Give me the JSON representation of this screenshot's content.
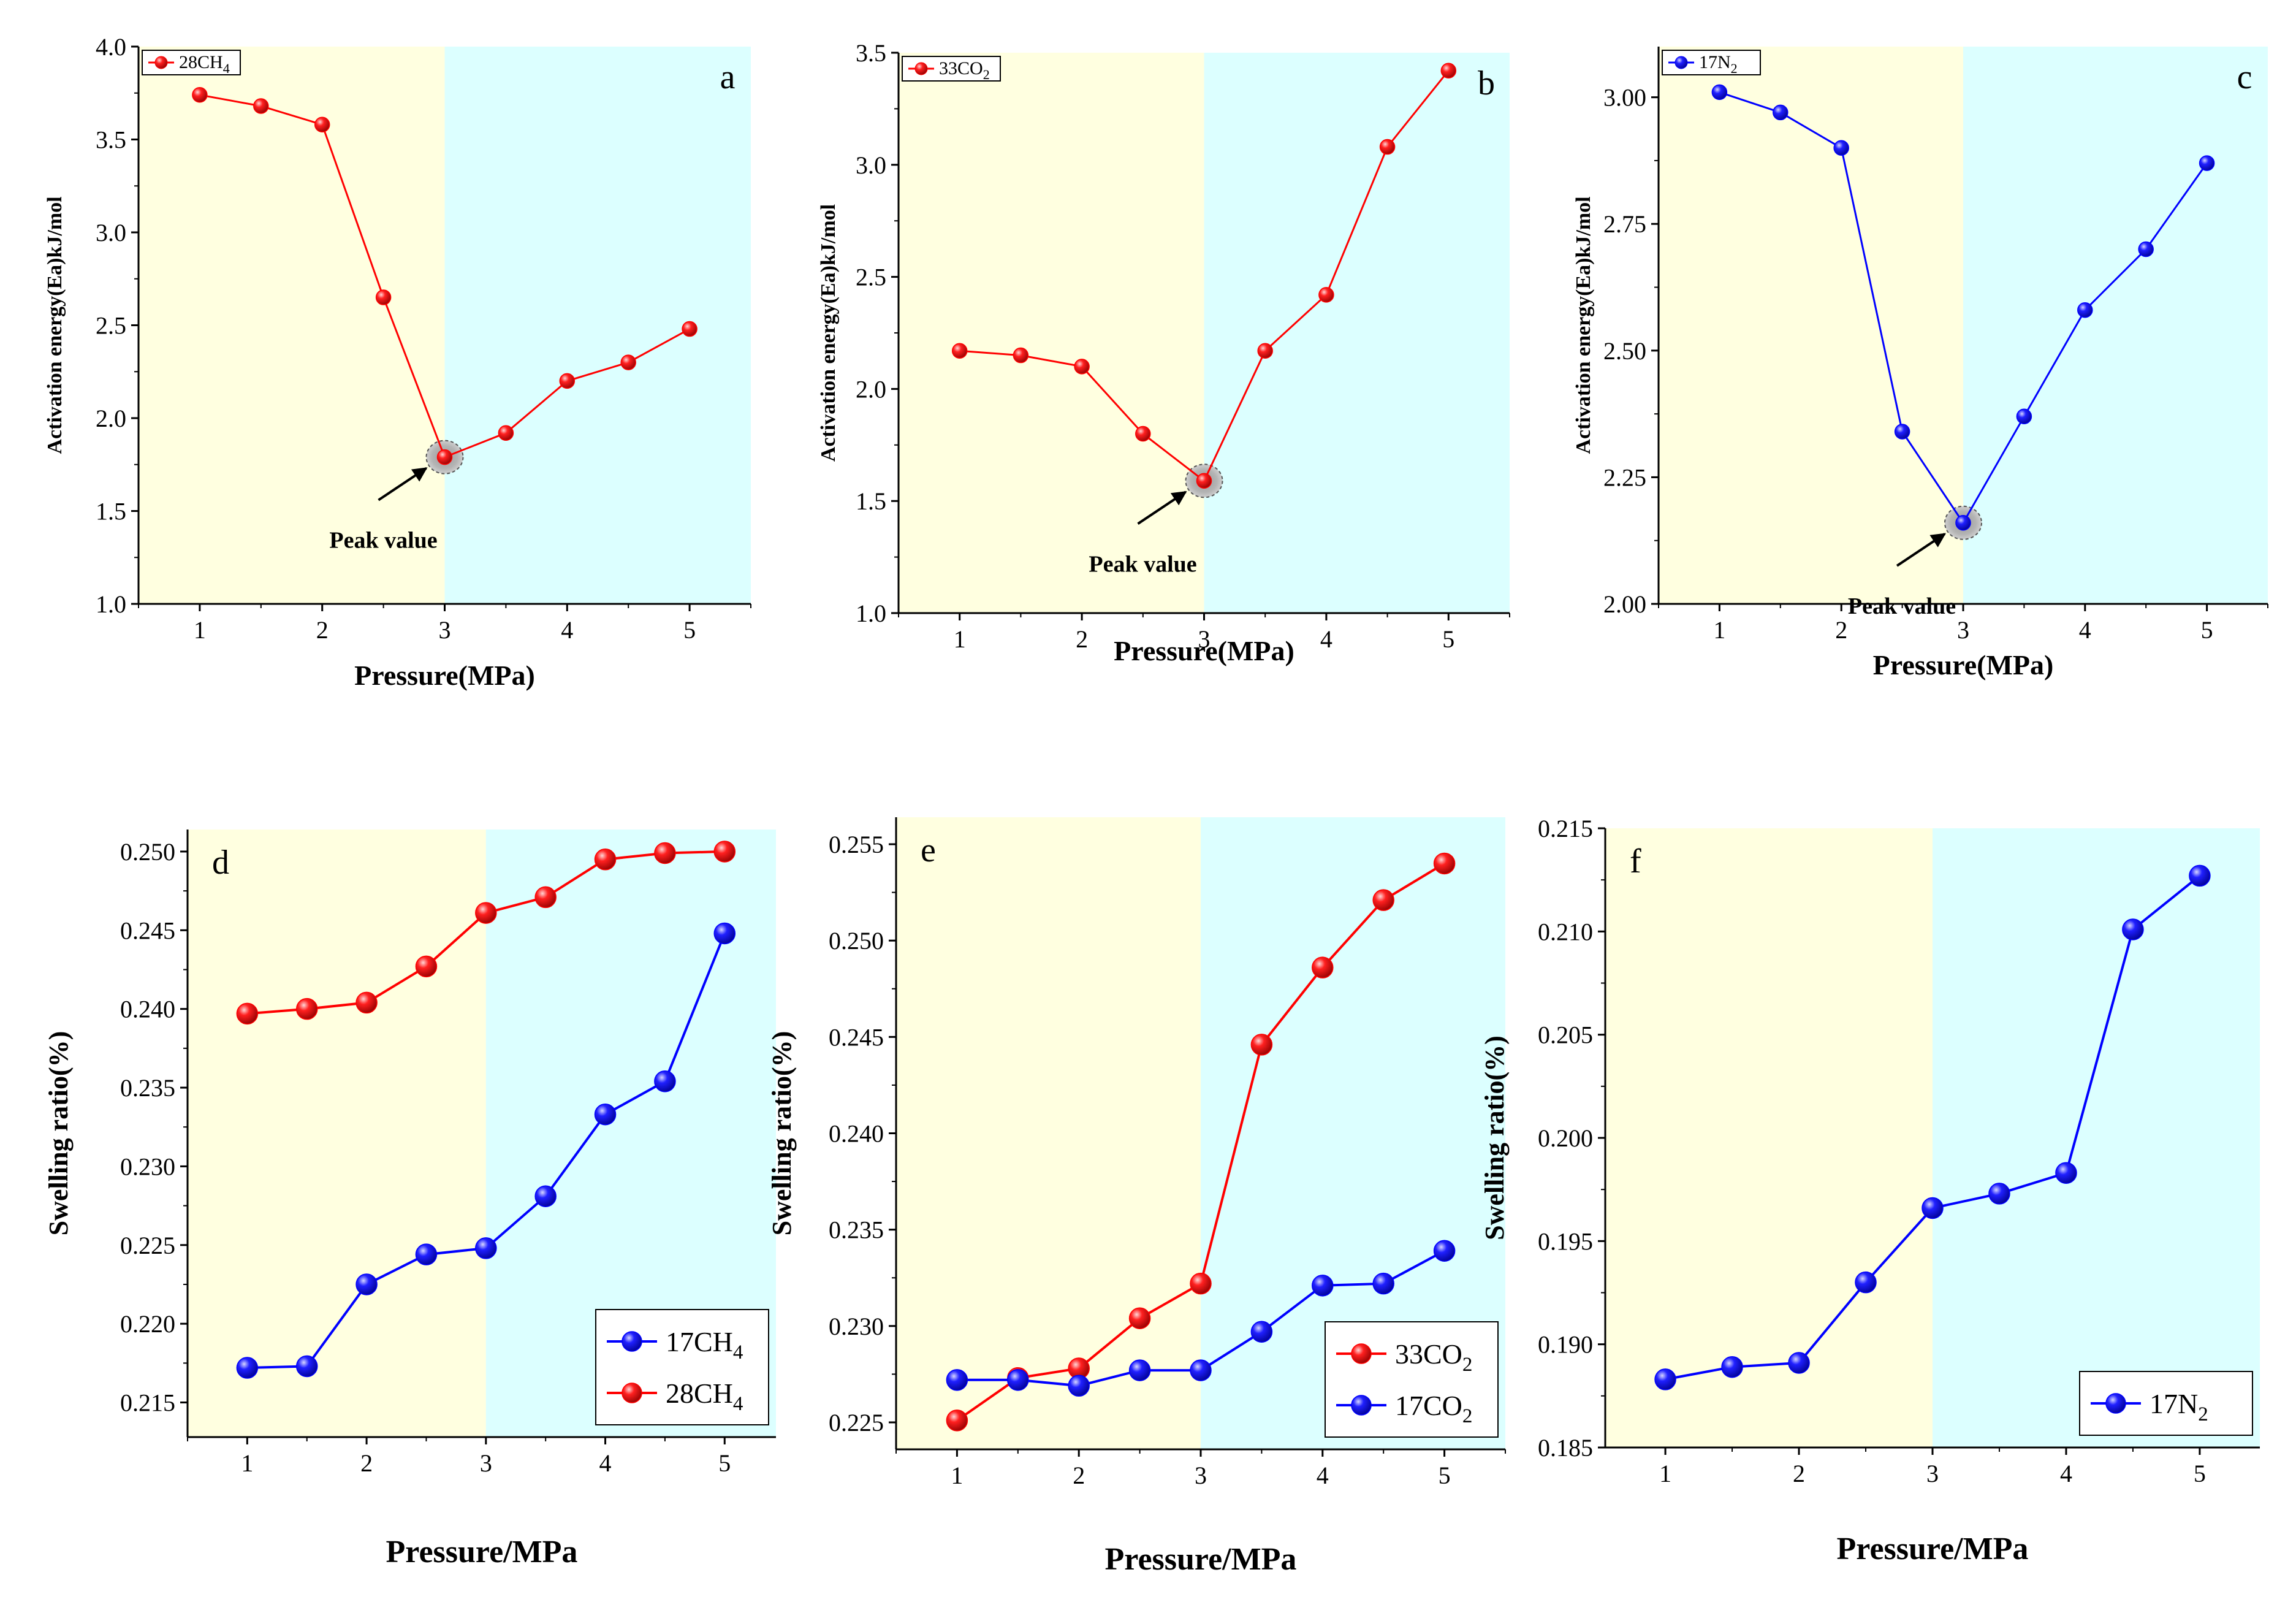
{
  "colors": {
    "red_series": "#ff0000",
    "blue_series": "#0000ff",
    "low_pressure_region": "#ffffe0",
    "high_pressure_region": "#dcffff",
    "axis": "#000000"
  },
  "chart_data": [
    {
      "id": "a",
      "type": "line",
      "panel_label": "a",
      "xlabel": "Pressure(MPa)",
      "ylabel": "Activation energy(Ea)kJ/mol",
      "xlim": [
        0.5,
        5.5
      ],
      "ylim": [
        1.0,
        4.0
      ],
      "x_ticks": [
        1,
        2,
        3,
        4,
        5
      ],
      "x_tick_labels": [
        "1",
        "2",
        "3",
        "4",
        "5"
      ],
      "y_ticks": [
        1.0,
        1.5,
        2.0,
        2.5,
        3.0,
        3.5,
        4.0
      ],
      "y_tick_labels": [
        "1.0",
        "1.5",
        "2.0",
        "2.5",
        "3.0",
        "3.5",
        "4.0"
      ],
      "region_split_x": 3,
      "legend_position": "top-left",
      "series": [
        {
          "name": "28CH4",
          "label_base": "28CH",
          "label_sub": "4",
          "color": "#ff0000",
          "x": [
            1,
            1.5,
            2,
            2.5,
            3,
            3.5,
            4,
            4.5,
            5
          ],
          "values": [
            3.74,
            3.68,
            3.58,
            2.65,
            1.79,
            1.92,
            2.2,
            2.3,
            2.48
          ]
        }
      ],
      "annotation": {
        "text": "Peak value",
        "x": 3,
        "y": 1.79
      }
    },
    {
      "id": "b",
      "type": "line",
      "panel_label": "b",
      "xlabel": "Pressure(MPa)",
      "ylabel": "Activation energy(Ea)kJ/mol",
      "xlim": [
        0.5,
        5.5
      ],
      "ylim": [
        1.0,
        3.5
      ],
      "x_ticks": [
        1,
        2,
        3,
        4,
        5
      ],
      "x_tick_labels": [
        "1",
        "2",
        "3",
        "4",
        "5"
      ],
      "y_ticks": [
        1.0,
        1.5,
        2.0,
        2.5,
        3.0,
        3.5
      ],
      "y_tick_labels": [
        "1.0",
        "1.5",
        "2.0",
        "2.5",
        "3.0",
        "3.5"
      ],
      "region_split_x": 3,
      "legend_position": "top-left",
      "series": [
        {
          "name": "33CO2",
          "label_base": "33CO",
          "label_sub": "2",
          "color": "#ff0000",
          "x": [
            1,
            1.5,
            2,
            2.5,
            3,
            3.5,
            4,
            4.5,
            5
          ],
          "values": [
            2.17,
            2.15,
            2.1,
            1.8,
            1.59,
            2.17,
            2.42,
            3.08,
            3.42
          ]
        }
      ],
      "annotation": {
        "text": "Peak value",
        "x": 3,
        "y": 1.59
      }
    },
    {
      "id": "c",
      "type": "line",
      "panel_label": "c",
      "xlabel": "Pressure(MPa)",
      "ylabel": "Activation energy(Ea)kJ/mol",
      "xlim": [
        0.5,
        5.5
      ],
      "ylim": [
        2.0,
        3.1
      ],
      "x_ticks": [
        1,
        2,
        3,
        4,
        5
      ],
      "x_tick_labels": [
        "1",
        "2",
        "3",
        "4",
        "5"
      ],
      "y_ticks": [
        2.0,
        2.25,
        2.5,
        2.75,
        3.0
      ],
      "y_tick_labels": [
        "2.00",
        "2.25",
        "2.50",
        "2.75",
        "3.00"
      ],
      "region_split_x": 3,
      "legend_position": "top-left",
      "series": [
        {
          "name": "17N2",
          "label_base": "17N",
          "label_sub": "2",
          "color": "#0000ff",
          "x": [
            1,
            1.5,
            2,
            2.5,
            3,
            3.5,
            4,
            4.5,
            5
          ],
          "values": [
            3.01,
            2.97,
            2.9,
            2.34,
            2.16,
            2.37,
            2.58,
            2.7,
            2.87
          ]
        }
      ],
      "annotation": {
        "text": "Peak value",
        "x": 3,
        "y": 2.16
      }
    },
    {
      "id": "d",
      "type": "line",
      "panel_label": "d",
      "xlabel": "Pressure/MPa",
      "ylabel": "Swelling ratio(%)",
      "xlim": [
        0.5,
        5.43
      ],
      "ylim": [
        0.2128,
        0.2514
      ],
      "x_ticks": [
        1,
        2,
        3,
        4,
        5
      ],
      "x_tick_labels": [
        "1",
        "2",
        "3",
        "4",
        "5"
      ],
      "y_ticks": [
        0.215,
        0.22,
        0.225,
        0.23,
        0.235,
        0.24,
        0.245,
        0.25
      ],
      "y_tick_labels": [
        "0.215",
        "0.220",
        "0.225",
        "0.230",
        "0.235",
        "0.240",
        "0.245",
        "0.250"
      ],
      "region_split_x": 3,
      "legend_position": "bottom-right",
      "series": [
        {
          "name": "17CH4",
          "label_base": "17CH",
          "label_sub": "4",
          "color": "#0000ff",
          "x": [
            1,
            1.5,
            2,
            2.5,
            3,
            3.5,
            4,
            4.5,
            5
          ],
          "values": [
            0.2172,
            0.2173,
            0.2225,
            0.2244,
            0.2248,
            0.2281,
            0.2333,
            0.2354,
            0.2448
          ]
        },
        {
          "name": "28CH4",
          "label_base": "28CH",
          "label_sub": "4",
          "color": "#ff0000",
          "x": [
            1,
            1.5,
            2,
            2.5,
            3,
            3.5,
            4,
            4.5,
            5
          ],
          "values": [
            0.2397,
            0.24,
            0.2404,
            0.2427,
            0.2461,
            0.2471,
            0.2495,
            0.2499,
            0.25
          ]
        }
      ]
    },
    {
      "id": "e",
      "type": "line",
      "panel_label": "e",
      "xlabel": "Pressure/MPa",
      "ylabel": "Swelling ratio(%)",
      "xlim": [
        0.5,
        5.5
      ],
      "ylim": [
        0.2236,
        0.2564
      ],
      "x_ticks": [
        1,
        2,
        3,
        4,
        5
      ],
      "x_tick_labels": [
        "1",
        "2",
        "3",
        "4",
        "5"
      ],
      "y_ticks": [
        0.225,
        0.23,
        0.235,
        0.24,
        0.245,
        0.25,
        0.255
      ],
      "y_tick_labels": [
        "0.225",
        "0.230",
        "0.235",
        "0.240",
        "0.245",
        "0.250",
        "0.255"
      ],
      "region_split_x": 3,
      "legend_position": "bottom-right",
      "series": [
        {
          "name": "33CO2",
          "label_base": "33CO",
          "label_sub": "2",
          "color": "#ff0000",
          "x": [
            1,
            1.5,
            2,
            2.5,
            3,
            3.5,
            4,
            4.5,
            5
          ],
          "values": [
            0.2251,
            0.2273,
            0.2278,
            0.2304,
            0.2322,
            0.2446,
            0.2486,
            0.2521,
            0.254
          ]
        },
        {
          "name": "17CO2",
          "label_base": "17CO",
          "label_sub": "2",
          "color": "#0000ff",
          "x": [
            1,
            1.5,
            2,
            2.5,
            3,
            3.5,
            4,
            4.5,
            5
          ],
          "values": [
            0.2272,
            0.2272,
            0.2269,
            0.2277,
            0.2277,
            0.2297,
            0.2321,
            0.2322,
            0.2339
          ]
        }
      ]
    },
    {
      "id": "f",
      "type": "line",
      "panel_label": "f",
      "xlabel": "Pressure/MPa",
      "ylabel": "Swelling ratio(%)",
      "xlim": [
        0.55,
        5.45
      ],
      "ylim": [
        0.185,
        0.215
      ],
      "x_ticks": [
        1,
        2,
        3,
        4,
        5
      ],
      "x_tick_labels": [
        "1",
        "2",
        "3",
        "4",
        "5"
      ],
      "y_ticks": [
        0.185,
        0.19,
        0.195,
        0.2,
        0.205,
        0.21,
        0.215
      ],
      "y_tick_labels": [
        "0.185",
        "0.190",
        "0.195",
        "0.200",
        "0.205",
        "0.210",
        "0.215"
      ],
      "region_split_x": 3,
      "legend_position": "bottom-right",
      "series": [
        {
          "name": "17N2",
          "label_base": "17N",
          "label_sub": "2",
          "color": "#0000ff",
          "x": [
            1,
            1.5,
            2,
            2.5,
            3,
            3.5,
            4,
            4.5,
            5
          ],
          "values": [
            0.1883,
            0.1889,
            0.1891,
            0.193,
            0.1966,
            0.1973,
            0.1983,
            0.2101,
            0.2127
          ]
        }
      ]
    }
  ]
}
